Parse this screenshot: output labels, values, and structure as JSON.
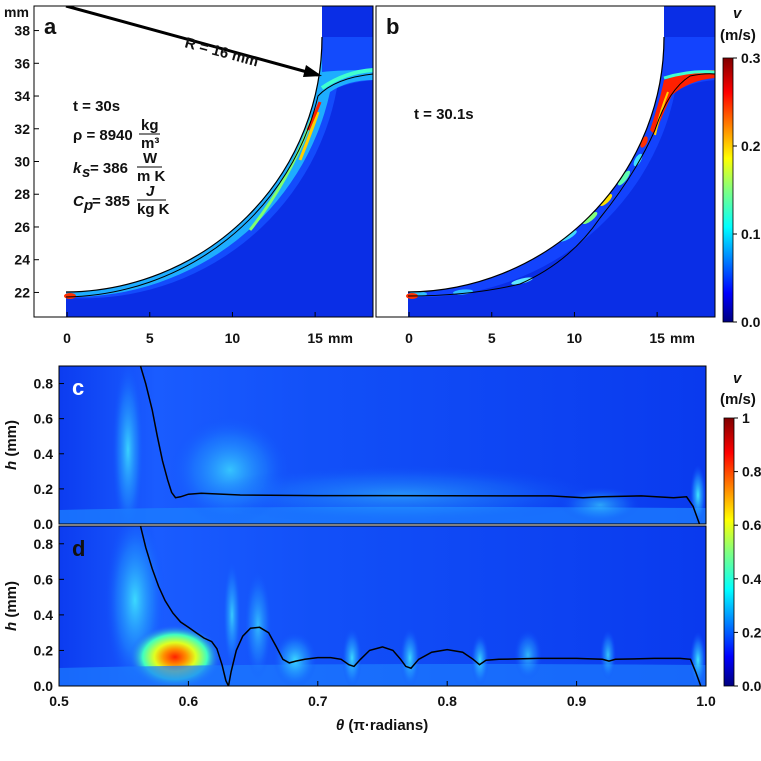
{
  "chart_data": [
    {
      "id": "a",
      "type": "heatmap",
      "panel_label": "a",
      "description_kind": "cross-section velocity field",
      "x_unit": "mm",
      "y_unit": "mm",
      "xlim": [
        -2,
        18.5
      ],
      "ylim": [
        20.5,
        39.5
      ],
      "x_ticks": [
        "0",
        "5",
        "10",
        "15"
      ],
      "y_ticks": [
        "22",
        "24",
        "26",
        "28",
        "30",
        "32",
        "34",
        "36",
        "38"
      ],
      "radius_label": "R = 16 mm",
      "annotations": [
        "t = 30s",
        "ρ = 8940",
        "kg",
        "m³",
        "k",
        "s",
        "= 386",
        "W",
        "m K",
        "C",
        "p",
        "= 385",
        "J",
        "kg K"
      ]
    },
    {
      "id": "b",
      "type": "heatmap",
      "panel_label": "b",
      "x_unit": "mm",
      "xlim": [
        -2,
        18.5
      ],
      "ylim": [
        20.5,
        39.5
      ],
      "x_ticks": [
        "0",
        "5",
        "10",
        "15"
      ],
      "annotations": [
        "t = 30.1s"
      ]
    },
    {
      "id": "colorbar_ab",
      "type": "colorbar",
      "title_var": "v",
      "title_unit": "(m/s)",
      "range": [
        0.0,
        0.3
      ],
      "ticks": [
        "0.3",
        "0.2",
        "0.1",
        "0.0"
      ],
      "tick_values": [
        0.3,
        0.2,
        0.1,
        0.0
      ]
    },
    {
      "id": "c",
      "type": "line",
      "panel_label": "c",
      "xlim": [
        0.5,
        1.0
      ],
      "ylim": [
        0.0,
        0.9
      ],
      "ylabel_var": "h",
      "ylabel_unit": "(mm)",
      "y_ticks": [
        "0.0",
        "0.2",
        "0.4",
        "0.6",
        "0.8"
      ],
      "film_thickness": {
        "x": [
          0.563,
          0.567,
          0.572,
          0.576,
          0.58,
          0.584,
          0.587,
          0.59,
          0.594,
          0.6,
          0.61,
          0.64,
          0.7,
          0.8,
          0.88,
          0.905,
          0.92,
          0.95,
          0.975,
          0.985,
          0.99,
          0.995
        ],
        "y": [
          0.9,
          0.8,
          0.65,
          0.5,
          0.36,
          0.25,
          0.18,
          0.15,
          0.155,
          0.17,
          0.175,
          0.165,
          0.162,
          0.161,
          0.16,
          0.15,
          0.155,
          0.16,
          0.15,
          0.155,
          0.1,
          0.0
        ]
      }
    },
    {
      "id": "d",
      "type": "line",
      "panel_label": "d",
      "xlim": [
        0.5,
        1.0
      ],
      "ylim": [
        0.0,
        0.9
      ],
      "ylabel_var": "h",
      "ylabel_unit": "(mm)",
      "y_ticks": [
        "0.0",
        "0.2",
        "0.4",
        "0.6",
        "0.8"
      ],
      "xlabel_var": "θ",
      "xlabel_unit": "(π·radians)",
      "x_ticks": [
        "0.5",
        "0.6",
        "0.7",
        "0.8",
        "0.9",
        "1.0"
      ],
      "x_tick_values": [
        0.5,
        0.6,
        0.7,
        0.8,
        0.9,
        1.0
      ],
      "film_thickness": {
        "x": [
          0.563,
          0.567,
          0.572,
          0.577,
          0.582,
          0.588,
          0.594,
          0.6,
          0.606,
          0.612,
          0.618,
          0.622,
          0.626,
          0.629,
          0.631,
          0.633,
          0.637,
          0.642,
          0.648,
          0.655,
          0.662,
          0.668,
          0.673,
          0.678,
          0.683,
          0.69,
          0.7,
          0.71,
          0.718,
          0.724,
          0.728,
          0.733,
          0.74,
          0.75,
          0.758,
          0.764,
          0.768,
          0.772,
          0.778,
          0.788,
          0.8,
          0.812,
          0.82,
          0.825,
          0.83,
          0.84,
          0.87,
          0.9,
          0.92,
          0.925,
          0.93,
          0.96,
          0.98,
          0.988,
          0.992,
          0.996
        ],
        "y": [
          0.9,
          0.78,
          0.66,
          0.56,
          0.48,
          0.41,
          0.36,
          0.33,
          0.3,
          0.27,
          0.25,
          0.21,
          0.12,
          0.03,
          0.0,
          0.08,
          0.2,
          0.28,
          0.325,
          0.33,
          0.3,
          0.22,
          0.15,
          0.13,
          0.14,
          0.15,
          0.16,
          0.16,
          0.15,
          0.12,
          0.11,
          0.15,
          0.2,
          0.22,
          0.2,
          0.15,
          0.11,
          0.1,
          0.15,
          0.19,
          0.205,
          0.19,
          0.15,
          0.12,
          0.145,
          0.15,
          0.155,
          0.155,
          0.15,
          0.14,
          0.15,
          0.155,
          0.155,
          0.15,
          0.08,
          0.0
        ]
      }
    },
    {
      "id": "colorbar_cd",
      "type": "colorbar",
      "title_var": "v",
      "title_unit": "(m/s)",
      "range": [
        0.0,
        1.0
      ],
      "ticks": [
        "1",
        "0.8",
        "0.6",
        "0.4",
        "0.2",
        "0.0"
      ],
      "tick_values": [
        1.0,
        0.8,
        0.6,
        0.4,
        0.2,
        0.0
      ]
    }
  ],
  "labels": {
    "mm_unit": "mm",
    "mm_top": "mm"
  },
  "colors": {
    "background_field": "#0a2ee6",
    "jet": [
      "#00007f",
      "#0000ff",
      "#0080ff",
      "#00ffff",
      "#80ff80",
      "#ffff00",
      "#ff8000",
      "#ff0000",
      "#7f0000"
    ],
    "contour_line": "#000000"
  }
}
